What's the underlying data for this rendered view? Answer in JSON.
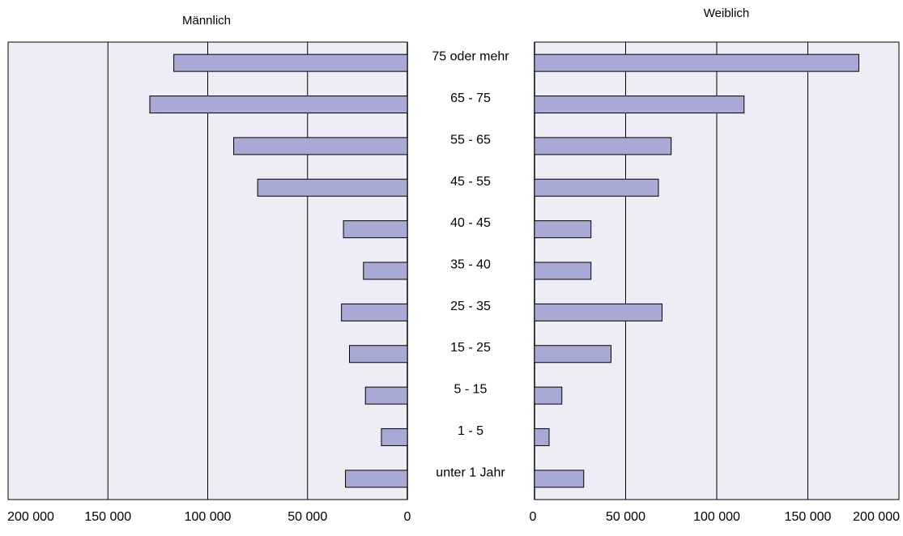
{
  "chart_data": {
    "type": "bar",
    "categories": [
      "75 oder mehr",
      "65 - 75",
      "55 - 65",
      "45 - 55",
      "40 - 45",
      "35 - 40",
      "25 - 35",
      "15 - 25",
      "5 - 15",
      "1 - 5",
      "unter 1 Jahr"
    ],
    "series": [
      {
        "name": "Männlich",
        "values": [
          117000,
          129000,
          87000,
          75000,
          32000,
          22000,
          33000,
          29000,
          21000,
          13000,
          31000
        ]
      },
      {
        "name": "Weiblich",
        "values": [
          178000,
          115000,
          75000,
          68000,
          31000,
          31000,
          70000,
          42000,
          15000,
          8000,
          27000
        ]
      }
    ],
    "xlim": [
      0,
      200000
    ],
    "x_ticks": [
      "200 000",
      "150 000",
      "100 000",
      "50 000",
      "0"
    ],
    "x_ticks_right": [
      "0",
      "50 000",
      "100 000",
      "150 000",
      "200 000"
    ],
    "grid": true,
    "colors": {
      "bar_fill": "#a9a9d6",
      "bar_stroke": "#000000",
      "plot_bg": "#eeedf5",
      "grid": "#000000"
    }
  }
}
